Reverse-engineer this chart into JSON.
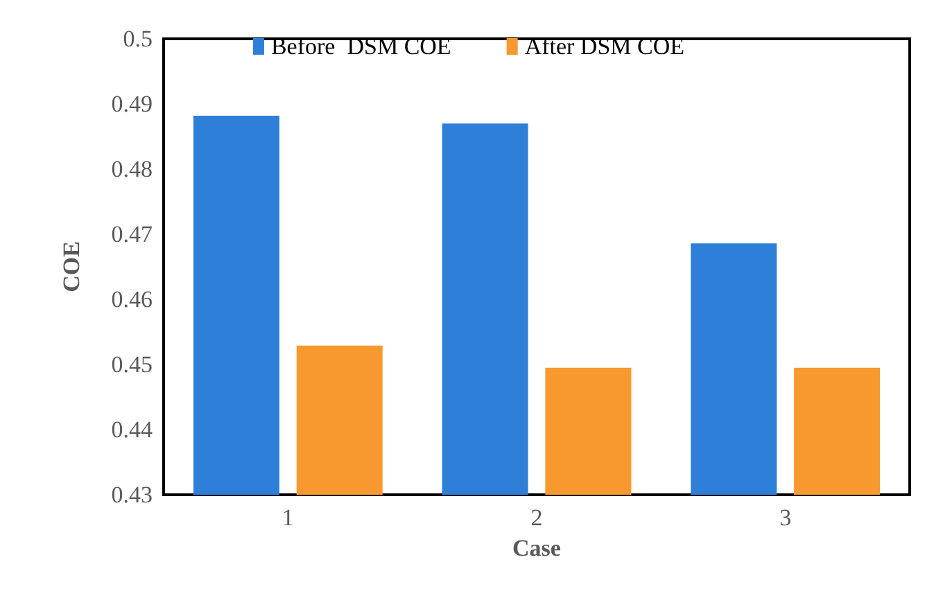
{
  "chart_data": {
    "type": "bar",
    "xlabel": "Case",
    "ylabel": "COE",
    "categories": [
      "1",
      "2",
      "3"
    ],
    "series": [
      {
        "name": "Before  DSM COE",
        "color": "#2e7fd8",
        "values": [
          0.4882,
          0.487,
          0.4686
        ]
      },
      {
        "name": "After DSM COE",
        "color": "#f7992e",
        "values": [
          0.4529,
          0.4495,
          0.4495
        ]
      }
    ],
    "ylim": [
      0.43,
      0.5
    ],
    "yticks": [
      0.43,
      0.44,
      0.45,
      0.46,
      0.47,
      0.48,
      0.49,
      0.5
    ],
    "grid": false,
    "legend": "top"
  }
}
